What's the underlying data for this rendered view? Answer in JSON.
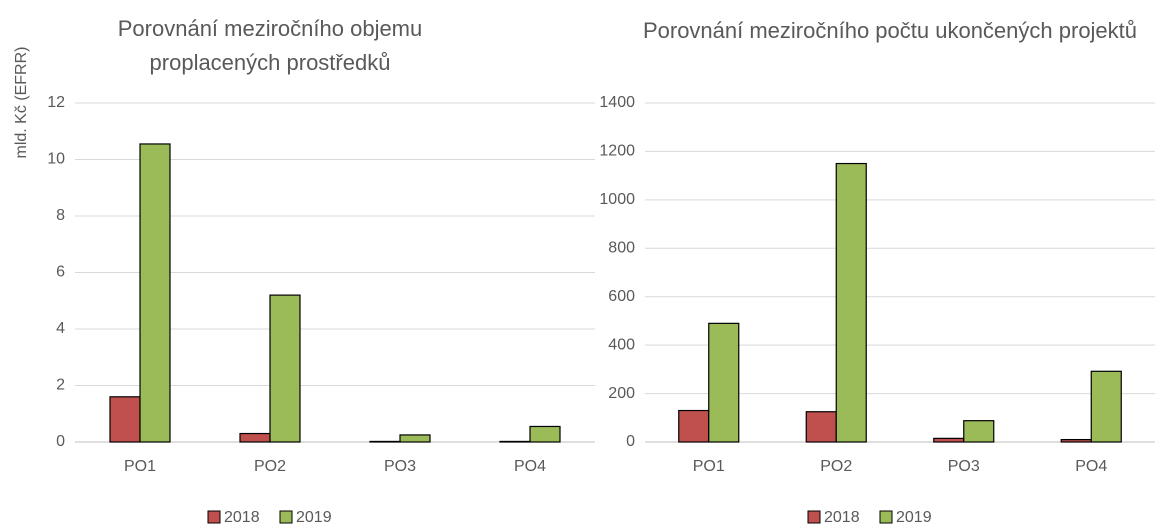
{
  "chart_data": [
    {
      "type": "bar",
      "title": "Porovnání meziročního objemu proplacených prostředků",
      "y_label": "mld. Kč (EFRR)",
      "categories": [
        "PO1",
        "PO2",
        "PO3",
        "PO4"
      ],
      "series": [
        {
          "name": "2018",
          "color": "#c0504d",
          "values": [
            1.6,
            0.3,
            0.02,
            0.02
          ]
        },
        {
          "name": "2019",
          "color": "#9bbb59",
          "values": [
            10.55,
            5.2,
            0.25,
            0.55
          ]
        }
      ],
      "ylim": [
        0,
        12
      ],
      "yticks": [
        0,
        2,
        4,
        6,
        8,
        10,
        12
      ],
      "grid": true
    },
    {
      "type": "bar",
      "title": "Porovnání meziročního počtu ukončených projektů",
      "categories": [
        "PO1",
        "PO2",
        "PO3",
        "PO4"
      ],
      "series": [
        {
          "name": "2018",
          "color": "#c0504d",
          "values": [
            130,
            125,
            15,
            10
          ]
        },
        {
          "name": "2019",
          "color": "#9bbb59",
          "values": [
            490,
            1150,
            88,
            292
          ]
        }
      ],
      "ylim": [
        0,
        1400
      ],
      "yticks": [
        0,
        200,
        400,
        600,
        800,
        1000,
        1200,
        1400
      ],
      "grid": true
    }
  ]
}
